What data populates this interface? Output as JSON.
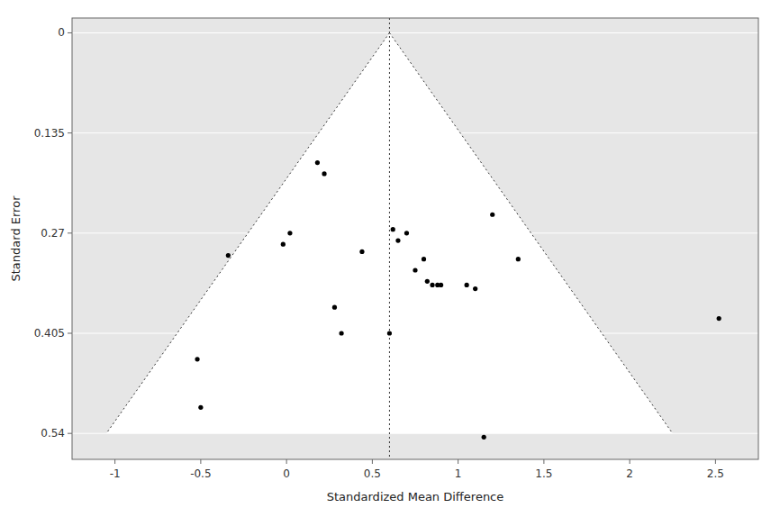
{
  "chart_data": {
    "type": "scatter",
    "title": "",
    "x_label": "Standardized Mean Difference",
    "y_label": "Standard Error",
    "xlim": [
      -1.25,
      2.75
    ],
    "ylim": [
      0.575,
      -0.02
    ],
    "xticks": [
      -1,
      -0.5,
      0,
      0.5,
      1,
      1.5,
      2,
      2.5
    ],
    "yticks": [
      0,
      0.135,
      0.27,
      0.405,
      0.54
    ],
    "grid": "y",
    "color": "black",
    "funnel": {
      "apex_x": 0.6,
      "apex_y": 0.0,
      "base_y": 0.54,
      "left_base_x": -1.05,
      "right_base_x": 2.25
    },
    "reference_x": 0.6,
    "x": [
      -0.52,
      -0.5,
      -0.34,
      -0.02,
      0.02,
      0.18,
      0.22,
      0.28,
      0.32,
      0.44,
      0.6,
      0.62,
      0.65,
      0.7,
      0.75,
      0.8,
      0.82,
      0.85,
      0.88,
      0.9,
      1.05,
      1.1,
      1.15,
      1.2,
      1.35,
      2.52
    ],
    "values": [
      0.44,
      0.505,
      0.3,
      0.285,
      0.27,
      0.175,
      0.19,
      0.37,
      0.405,
      0.295,
      0.405,
      0.265,
      0.28,
      0.27,
      0.32,
      0.305,
      0.335,
      0.34,
      0.34,
      0.34,
      0.34,
      0.345,
      0.545,
      0.245,
      0.305,
      0.385
    ]
  }
}
